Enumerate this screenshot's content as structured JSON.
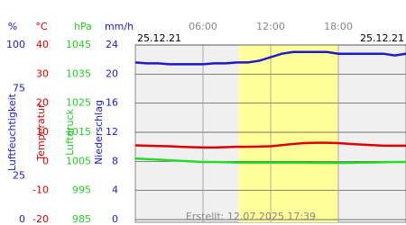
{
  "chart_data": {
    "type": "line",
    "date_start": "25.12.21",
    "date_end": "25.12.21",
    "footer": "Erstellt: 12.07.2025 17:39",
    "xlim": [
      0,
      24
    ],
    "xticks": [
      {
        "value": 6,
        "label": "06:00"
      },
      {
        "value": 12,
        "label": "12:00"
      },
      {
        "value": 18,
        "label": "18:00"
      }
    ],
    "daylight": [
      9.2,
      18
    ],
    "axes": [
      {
        "unit": "%",
        "title": "Luftfeuchtigkeit",
        "color": "#1a1acc",
        "ylim": [
          0,
          100
        ],
        "yticks": [
          100,
          75,
          25,
          0
        ]
      },
      {
        "unit": "°C",
        "title": "Temperatur",
        "color": "#dd0000",
        "ylim": [
          -20,
          40
        ],
        "yticks": [
          40,
          30,
          20,
          10,
          0,
          -10,
          -20
        ]
      },
      {
        "unit": "hPa",
        "title": "Luftdruck",
        "color": "#22cc22",
        "ylim": [
          985,
          1045
        ],
        "yticks": [
          1045,
          1035,
          1025,
          1015,
          1005,
          995,
          985
        ]
      },
      {
        "unit": "mm/h",
        "title": "Niederschlag",
        "color": "#1a1acc",
        "ylim": [
          0,
          24
        ],
        "yticks": [
          24,
          20,
          16,
          12,
          8,
          4,
          0
        ]
      }
    ],
    "x": [
      0,
      1,
      2,
      3,
      4,
      5,
      6,
      7,
      8,
      9,
      10,
      11,
      12,
      13,
      14,
      15,
      16,
      17,
      18,
      19,
      20,
      21,
      22,
      23,
      24
    ],
    "series": [
      {
        "axis": 0,
        "color": "#1a1acc",
        "values": [
          90,
          89.5,
          89.5,
          89,
          89,
          89,
          89,
          89.5,
          89.5,
          90,
          90,
          91,
          93,
          95,
          96,
          96,
          96,
          96,
          95,
          95,
          95,
          95,
          95,
          94,
          95
        ]
      },
      {
        "axis": 1,
        "color": "#dd0000",
        "values": [
          5.5,
          5.4,
          5.3,
          5.2,
          5.0,
          4.9,
          4.8,
          4.8,
          4.9,
          5.0,
          5.0,
          5.1,
          5.2,
          5.6,
          6.0,
          6.3,
          6.4,
          6.4,
          6.3,
          6.0,
          5.8,
          5.6,
          5.4,
          5.4,
          5.4
        ]
      },
      {
        "axis": 2,
        "color": "#22dd22",
        "values": [
          1006,
          1005.8,
          1005.6,
          1005.4,
          1005.2,
          1005,
          1004.8,
          1004.8,
          1004.7,
          1004.6,
          1004.6,
          1004.6,
          1004.6,
          1004.6,
          1004.6,
          1004.6,
          1004.5,
          1004.5,
          1004.5,
          1004.5,
          1004.6,
          1004.6,
          1004.7,
          1004.8,
          1004.8
        ]
      }
    ]
  }
}
